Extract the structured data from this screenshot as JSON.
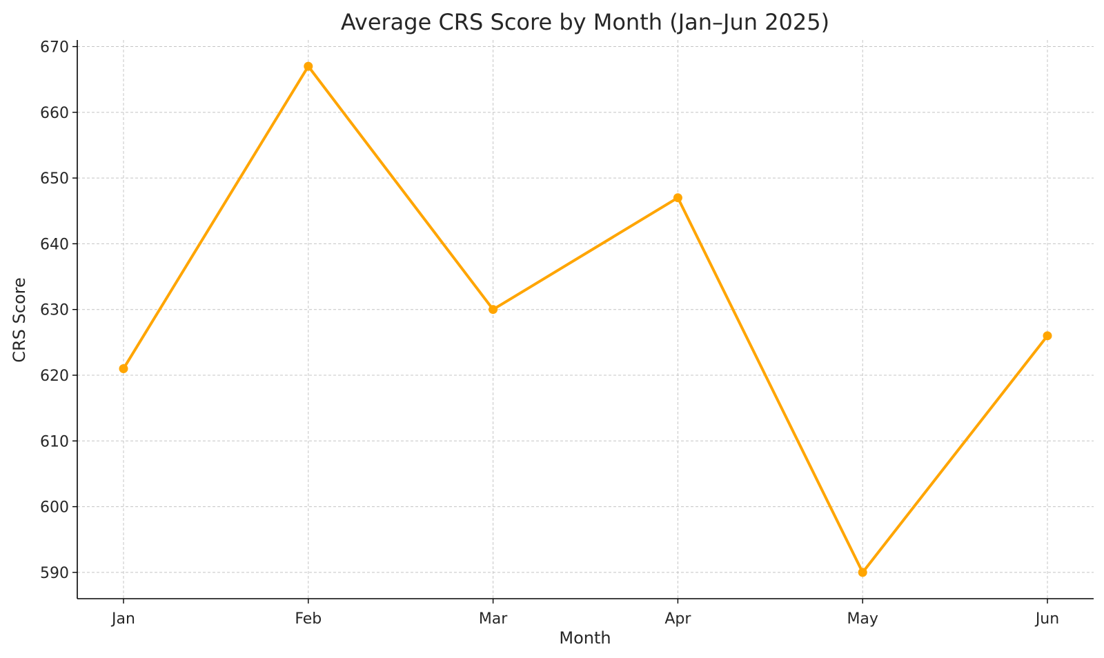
{
  "chart_data": {
    "type": "line",
    "title": "Average CRS Score by Month (Jan–Jun 2025)",
    "xlabel": "Month",
    "ylabel": "CRS Score",
    "categories": [
      "Jan",
      "Feb",
      "Mar",
      "Apr",
      "May",
      "Jun"
    ],
    "series": [
      {
        "values": [
          621,
          667,
          630,
          647,
          590,
          626
        ]
      }
    ],
    "ylim": [
      586,
      671
    ],
    "yticks": [
      590,
      600,
      610,
      620,
      630,
      640,
      650,
      660,
      670
    ],
    "grid": true,
    "marker": "circle",
    "line_color": "#FFA500"
  }
}
